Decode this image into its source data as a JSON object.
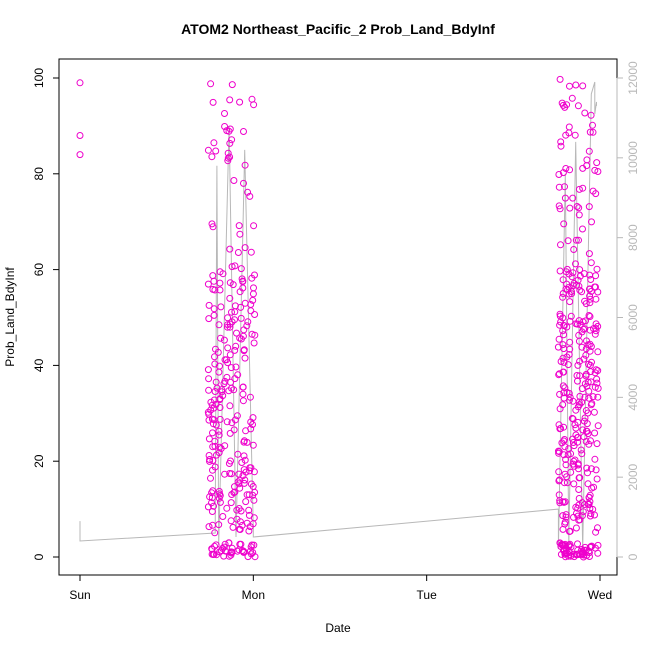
{
  "chart_data": {
    "type": "scatter",
    "title": "ATOM2 Northeast_Pacific_2 Prob_Land_BdyInf",
    "xlabel": "Date",
    "ylabel": "Prob_Land_BdyInf",
    "x_ticks": [
      "Sun",
      "Mon",
      "Tue",
      "Wed"
    ],
    "y_ticks": [
      "0",
      "20",
      "40",
      "60",
      "80",
      "100"
    ],
    "ylim": [
      0,
      100
    ],
    "y2_ticks": [
      "0",
      "2000",
      "4000",
      "6000",
      "8000",
      "10000",
      "12000"
    ],
    "y2lim": [
      0,
      12000
    ],
    "xlim_days": [
      -0.03,
      3.03
    ],
    "grid": false,
    "legend": "none",
    "point_color": "#ee00cc",
    "line_color": "#b8b8b8",
    "seed": 7,
    "clusters": [
      {
        "start": 0.74,
        "end": 1.01,
        "count": 300,
        "fixed": [
          [
            0.0,
            84
          ],
          [
            0.0,
            88
          ],
          [
            0.0,
            99
          ]
        ]
      },
      {
        "start": 2.76,
        "end": 2.99,
        "count": 380,
        "fixed": []
      }
    ],
    "line_trace": [
      [
        0.0,
        900
      ],
      [
        0.0,
        400
      ],
      [
        0.78,
        600
      ],
      [
        0.79,
        9800
      ],
      [
        0.8,
        300
      ],
      [
        0.86,
        10800
      ],
      [
        0.9,
        500
      ],
      [
        0.95,
        10200
      ],
      [
        1.0,
        700
      ],
      [
        1.0,
        500
      ],
      [
        2.76,
        1200
      ],
      [
        2.76,
        200
      ],
      [
        2.8,
        9600
      ],
      [
        2.82,
        300
      ],
      [
        2.86,
        10400
      ],
      [
        2.9,
        200
      ],
      [
        2.95,
        11600
      ],
      [
        2.97,
        11900
      ],
      [
        2.97,
        11100
      ],
      [
        2.98,
        11400
      ],
      [
        2.98,
        11300
      ]
    ]
  }
}
